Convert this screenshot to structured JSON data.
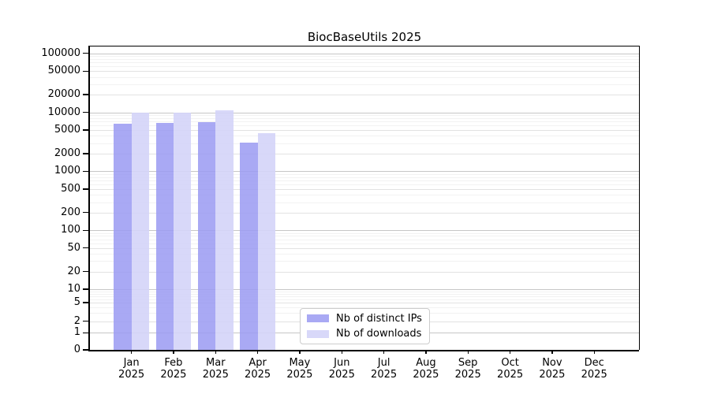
{
  "chart_data": {
    "type": "bar",
    "title": "BiocBaseUtils 2025",
    "x_tick_year": "2025",
    "categories": [
      "Jan",
      "Feb",
      "Mar",
      "Apr",
      "May",
      "Jun",
      "Jul",
      "Aug",
      "Sep",
      "Oct",
      "Nov",
      "Dec"
    ],
    "series": [
      {
        "name": "Nb of distinct IPs",
        "color": "#9a9af2",
        "opacity": 0.85,
        "values": [
          6400,
          6600,
          6900,
          3100,
          0,
          0,
          0,
          0,
          0,
          0,
          0,
          0
        ]
      },
      {
        "name": "Nb of downloads",
        "color": "#d4d4f8",
        "opacity": 0.9,
        "values": [
          9800,
          9900,
          10800,
          4400,
          0,
          0,
          0,
          0,
          0,
          0,
          0,
          0
        ]
      }
    ],
    "y_ticks": [
      0,
      1,
      2,
      5,
      10,
      20,
      50,
      100,
      200,
      500,
      1000,
      2000,
      5000,
      10000,
      20000,
      50000,
      100000
    ],
    "y_scale": "symlog",
    "ylim": [
      0,
      140000
    ],
    "grid": true,
    "legend_position": "bottom-center",
    "colors": {
      "grid_decade": "#c6c6c6",
      "grid_mid": "#e2e2e2",
      "grid_minor": "#f2f2f2",
      "axis": "#000000",
      "background": "#ffffff"
    }
  }
}
